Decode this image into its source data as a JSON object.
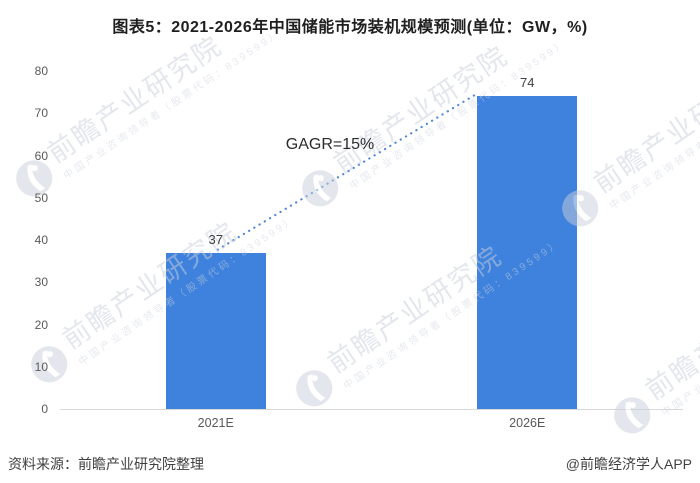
{
  "title": "图表5：2021-2026年中国储能市场装机规模预测(单位：GW，%)",
  "chart_data": {
    "type": "bar",
    "title": "图表5：2021-2026年中国储能市场装机规模预测(单位：GW，%)",
    "categories": [
      "2021E",
      "2026E"
    ],
    "values": [
      37,
      74
    ],
    "xlabel": "",
    "ylabel": "",
    "unit": "GW",
    "ylim": [
      0,
      80
    ],
    "yticks": [
      0,
      10,
      20,
      30,
      40,
      50,
      60,
      70,
      80
    ],
    "grid": false,
    "legend": "none",
    "bar_color": "#3E82DD",
    "annotation": {
      "text": "GAGR=15%"
    },
    "trendline": {
      "style": "dotted",
      "color": "#4E87DC",
      "from_value": 37,
      "to_value": 74
    }
  },
  "footer": {
    "source": "资料来源：前瞻产业研究院整理",
    "credit": "@前瞻经济学人APP"
  },
  "watermark": {
    "brand": "前瞻产业研究院",
    "tagline": "中国产业咨询领导者（股票代码：839599）"
  },
  "colors": {
    "background": "#FFFFFF",
    "title": "#1F1F1F",
    "axis_line": "#D9D9D9",
    "tick_label": "#595959",
    "value_label": "#404040",
    "watermark": "#C9CFDA"
  }
}
